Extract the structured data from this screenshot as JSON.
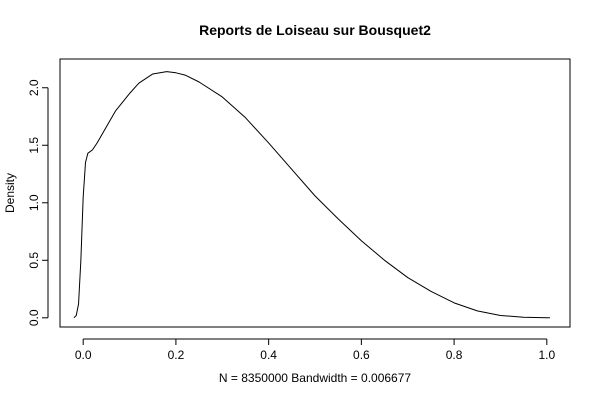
{
  "chart_data": {
    "type": "line",
    "title": "Reports de Loiseau sur Bousquet2",
    "xlabel": "N = 8350000   Bandwidth = 0.006677",
    "ylabel": "Density",
    "xlim": [
      -0.05,
      1.05
    ],
    "ylim": [
      -0.08,
      2.25
    ],
    "xticks": [
      0.0,
      0.2,
      0.4,
      0.6,
      0.8,
      1.0
    ],
    "xtick_labels": [
      "0.0",
      "0.2",
      "0.4",
      "0.6",
      "0.8",
      "1.0"
    ],
    "yticks": [
      0.0,
      0.5,
      1.0,
      1.5,
      2.0
    ],
    "ytick_labels": [
      "0.0",
      "0.5",
      "1.0",
      "1.5",
      "2.0"
    ],
    "grid": false,
    "series": [
      {
        "x": [
          -0.02,
          -0.015,
          -0.01,
          -0.005,
          0.0,
          0.005,
          0.01,
          0.02,
          0.03,
          0.05,
          0.07,
          0.1,
          0.12,
          0.15,
          0.18,
          0.2,
          0.22,
          0.25,
          0.3,
          0.35,
          0.4,
          0.45,
          0.5,
          0.55,
          0.6,
          0.65,
          0.7,
          0.75,
          0.8,
          0.85,
          0.9,
          0.95,
          1.0,
          1.0067
        ],
        "y": [
          0.0,
          0.02,
          0.12,
          0.5,
          1.05,
          1.35,
          1.43,
          1.46,
          1.52,
          1.66,
          1.8,
          1.95,
          2.04,
          2.12,
          2.14,
          2.13,
          2.11,
          2.05,
          1.92,
          1.74,
          1.52,
          1.29,
          1.06,
          0.86,
          0.67,
          0.5,
          0.35,
          0.23,
          0.13,
          0.06,
          0.02,
          0.005,
          0.0,
          0.0
        ]
      }
    ]
  }
}
